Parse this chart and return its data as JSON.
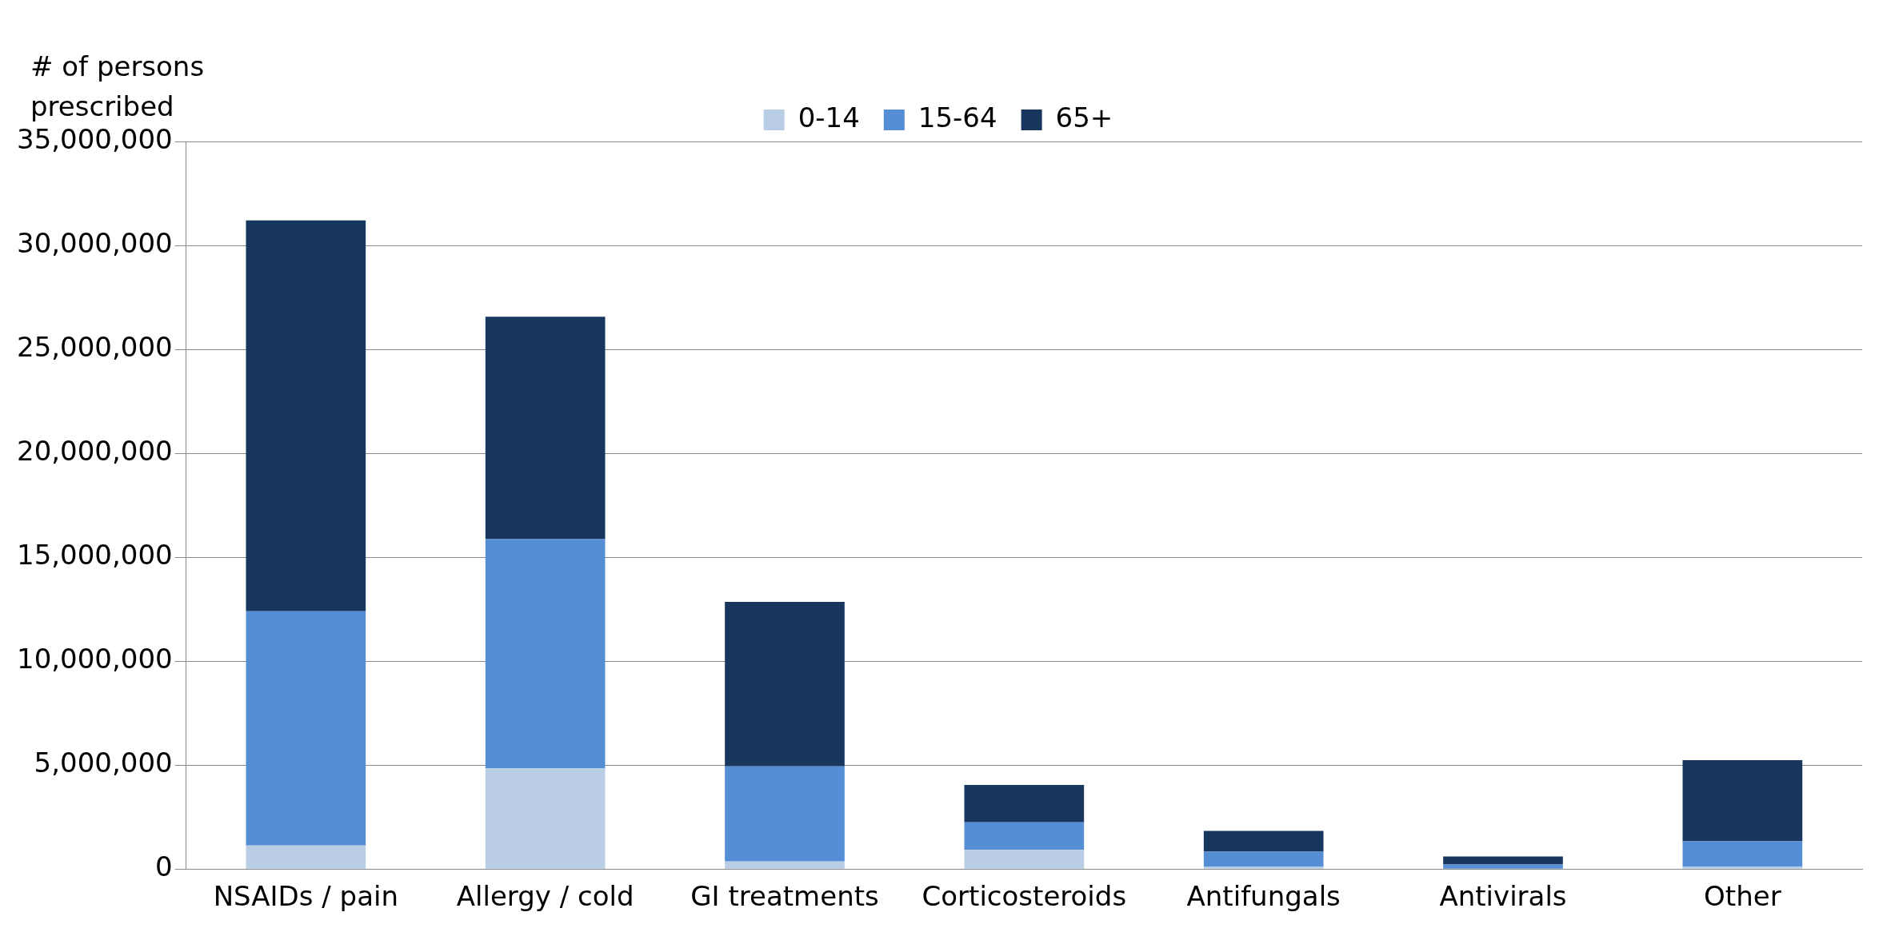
{
  "chart_data": {
    "type": "bar",
    "stacked": true,
    "ylabel": "# of persons prescribed",
    "categories": [
      "NSAIDs / pain",
      "Allergy / cold",
      "GI treatments",
      "Corticosteroids",
      "Antifungals",
      "Antivirals",
      "Other"
    ],
    "series": [
      {
        "name": "0-14",
        "color": "#b9cde5",
        "values": [
          1130000,
          4840000,
          360000,
          920000,
          100000,
          null,
          100000
        ]
      },
      {
        "name": "15-64",
        "color": "#558ed5",
        "values": [
          11270000,
          11030000,
          4580000,
          1330000,
          730000,
          220000,
          1230000
        ]
      },
      {
        "name": "65+",
        "color": "#17375e",
        "values": [
          18800000,
          10700000,
          7910000,
          1800000,
          1000000,
          380000,
          3910000
        ]
      }
    ],
    "ylim": [
      0,
      35000000
    ],
    "yticks": [
      0,
      {
        "value": 5000000,
        "label": "5,000,000"
      },
      {
        "value": 10000000,
        "label": "10,000,000"
      },
      {
        "value": 15000000,
        "label": "15,000,000"
      },
      {
        "value": 20000000,
        "label": "20,000,000"
      },
      {
        "value": 25000000,
        "label": "25,000,000"
      },
      {
        "value": 30000000,
        "label": "30,000,000"
      },
      {
        "value": 35000000,
        "label": "35,000,000"
      }
    ],
    "grid": "y",
    "legend": "top"
  }
}
